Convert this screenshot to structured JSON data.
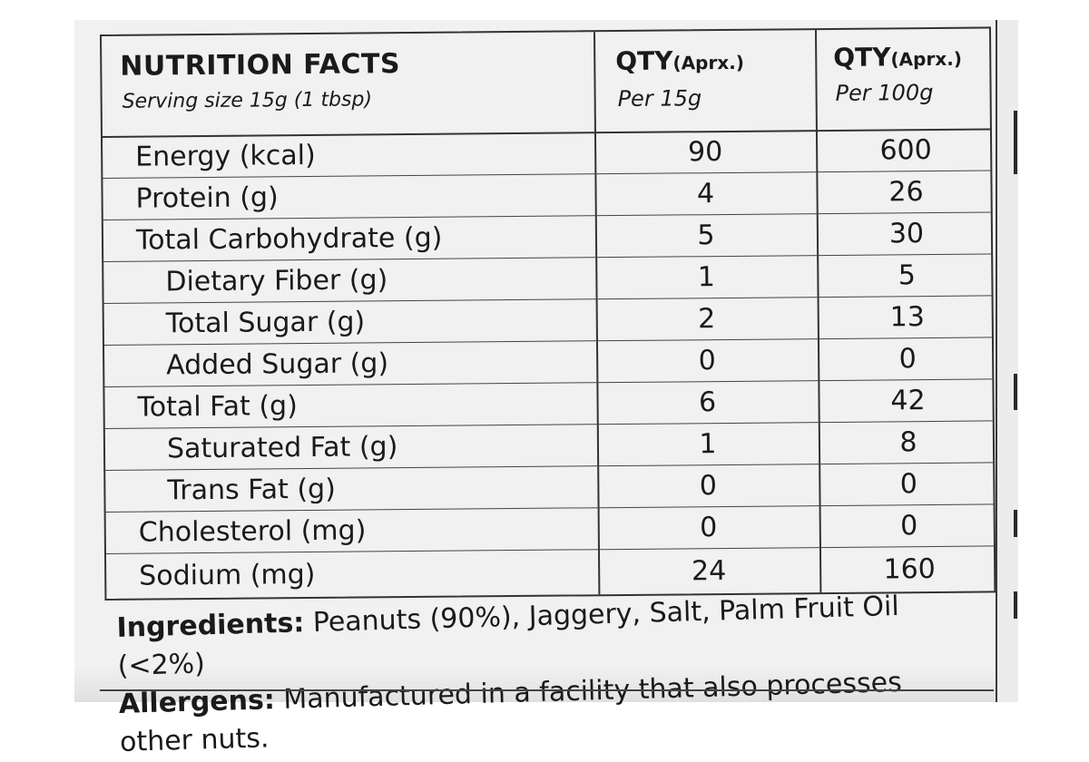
{
  "header": {
    "title": "NUTRITION FACTS",
    "serving": "Serving size 15g (1 tbsp)",
    "col1_qty": "QTY",
    "col1_qty_note": "(Aprx.)",
    "col1_per": "Per 15g",
    "col2_qty": "QTY",
    "col2_qty_note": "(Aprx.)",
    "col2_per": "Per 100g"
  },
  "rows": [
    {
      "name": "Energy (kcal)",
      "per15": "90",
      "per100": "600"
    },
    {
      "name": "Protein (g)",
      "per15": "4",
      "per100": "26"
    },
    {
      "name": "Total Carbohydrate (g)",
      "per15": "5",
      "per100": "30"
    },
    {
      "name": "Dietary Fiber (g)",
      "per15": "1",
      "per100": "5"
    },
    {
      "name": "Total Sugar (g)",
      "per15": "2",
      "per100": "13"
    },
    {
      "name": "Added Sugar (g)",
      "per15": "0",
      "per100": "0"
    },
    {
      "name": "Total Fat (g)",
      "per15": "6",
      "per100": "42"
    },
    {
      "name": "Saturated Fat (g)",
      "per15": "1",
      "per100": "8"
    },
    {
      "name": "Trans Fat (g)",
      "per15": "0",
      "per100": "0"
    },
    {
      "name": "Cholesterol (mg)",
      "per15": "0",
      "per100": "0"
    },
    {
      "name": "Sodium (mg)",
      "per15": "24",
      "per100": "160"
    }
  ],
  "footer": {
    "ingredients_label": "Ingredients:",
    "ingredients_text": " Peanuts (90%), Jaggery, Salt, Palm Fruit Oil (<2%)",
    "allergens_label": "Allergens:",
    "allergens_text": " Manufactured in a facility that also processes other nuts."
  }
}
